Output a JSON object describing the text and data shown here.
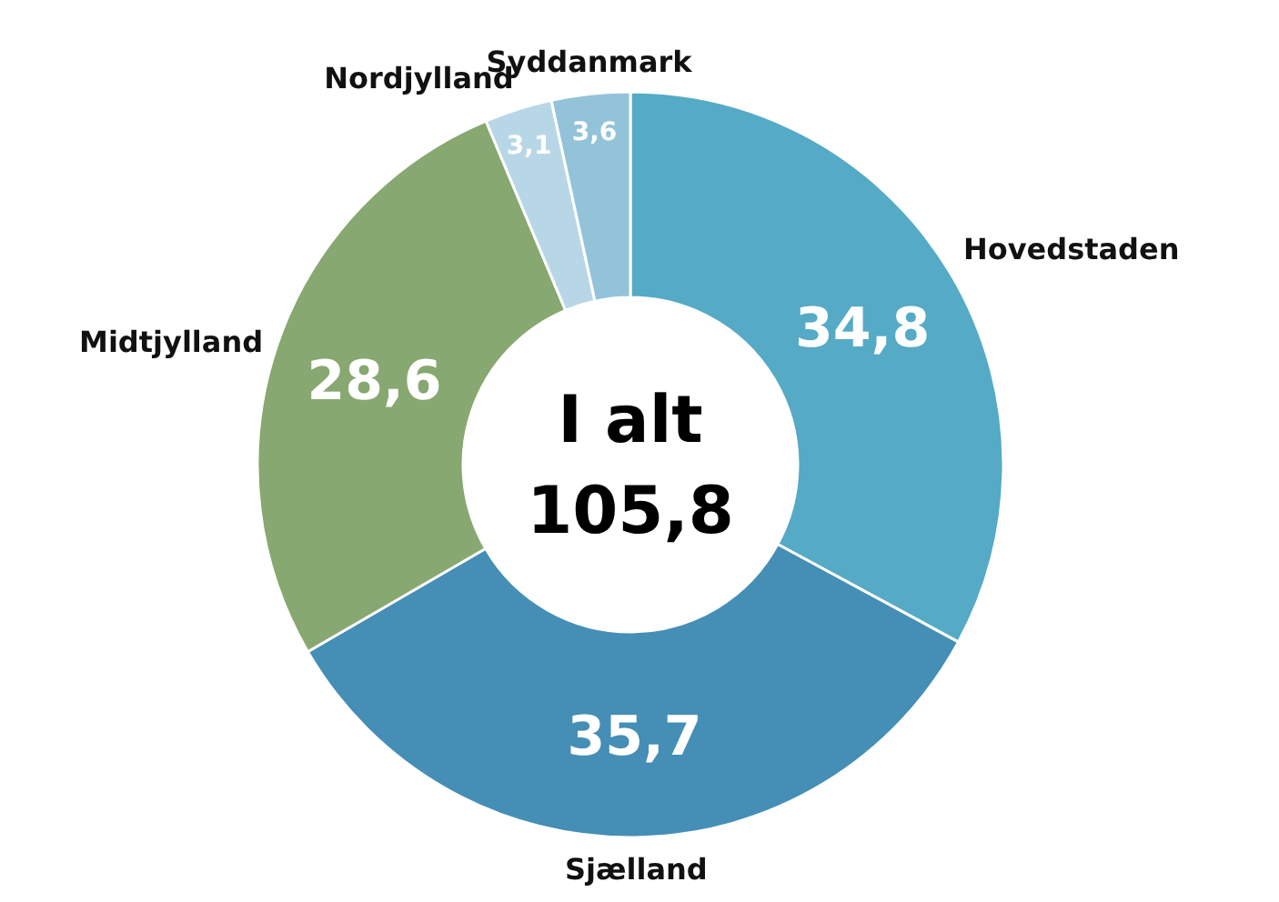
{
  "chart_data": {
    "type": "donut",
    "categories": [
      "Hovedstaden",
      "Sjælland",
      "Midtjylland",
      "Nordjylland",
      "Syddanmark"
    ],
    "values": [
      34.8,
      35.7,
      28.6,
      3.1,
      3.6
    ],
    "value_labels": [
      "34,8",
      "35,7",
      "28,6",
      "3,1",
      "3,6"
    ],
    "colors": [
      "#55aac6",
      "#458eb5",
      "#87a870",
      "#b8d7e6",
      "#93c3d9"
    ],
    "annotations": [
      "I alt",
      "105,8"
    ],
    "legend": false
  }
}
